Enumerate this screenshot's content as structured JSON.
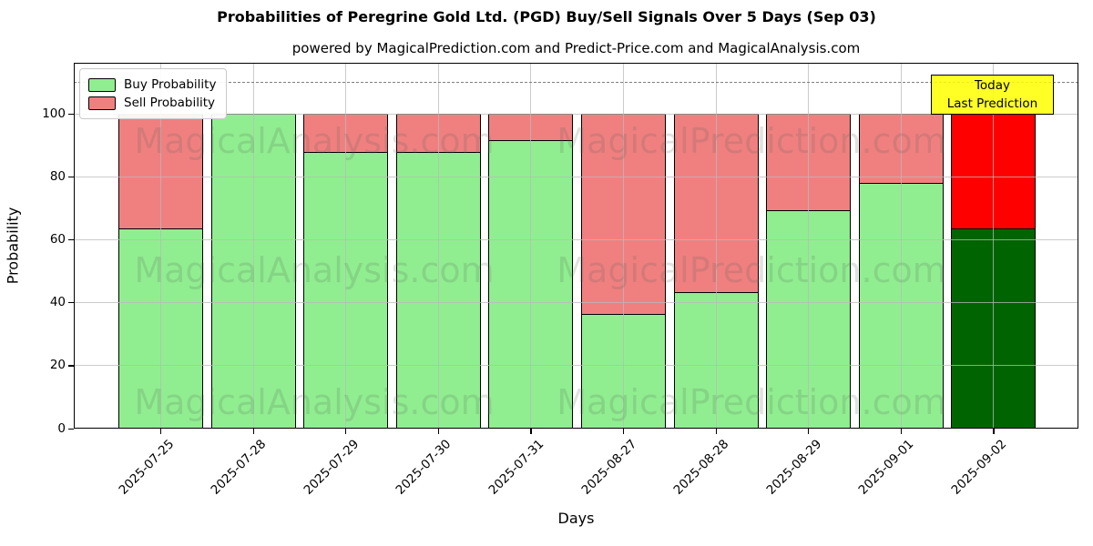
{
  "title": "Probabilities of Peregrine Gold Ltd. (PGD) Buy/Sell Signals Over 5 Days (Sep 03)",
  "subtitle": "powered by MagicalPrediction.com and Predict-Price.com and MagicalAnalysis.com",
  "legend": {
    "buy": "Buy Probability",
    "sell": "Sell Probability"
  },
  "annotation": {
    "line1": "Today",
    "line2": "Last Prediction"
  },
  "watermarks": {
    "left": "MagicalAnalysis.com",
    "right": "MagicalPrediction.com"
  },
  "chart_data": {
    "type": "bar",
    "stacked": true,
    "title": "Probabilities of Peregrine Gold Ltd. (PGD) Buy/Sell Signals Over 5 Days (Sep 03)",
    "subtitle": "powered by MagicalPrediction.com and Predict-Price.com and MagicalAnalysis.com",
    "categories": [
      "2025-07-25",
      "2025-07-28",
      "2025-07-29",
      "2025-07-30",
      "2025-07-31",
      "2025-08-27",
      "2025-08-28",
      "2025-08-29",
      "2025-09-01",
      "2025-09-02"
    ],
    "series": [
      {
        "name": "Buy Probability",
        "color": "#90ee90",
        "values": [
          63.5,
          100,
          88,
          88,
          91.5,
          36.5,
          43.5,
          69.5,
          78,
          63.5
        ]
      },
      {
        "name": "Sell Probability",
        "color": "#f08080",
        "values": [
          36.5,
          0,
          12,
          12,
          8.5,
          63.5,
          56.5,
          30.5,
          22,
          36.5
        ]
      }
    ],
    "today_colors": {
      "buy": "#006400",
      "sell": "#ff0000"
    },
    "edge_color": "#000000",
    "xlabel": "Days",
    "ylabel": "Probability",
    "yticks": [
      0,
      20,
      40,
      60,
      80,
      100
    ],
    "ylim": [
      0,
      116.2
    ],
    "dashed_line_y": 110,
    "grid": true,
    "legend_position": "upper left"
  }
}
